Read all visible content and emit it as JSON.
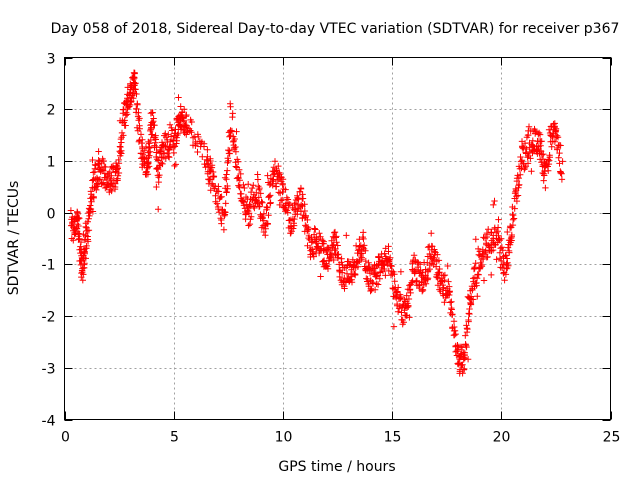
{
  "chart_data": {
    "type": "scatter",
    "title": "Day 058 of 2018, Sidereal Day-to-day VTEC variation (SDTVAR) for receiver p367",
    "xlabel": "GPS time / hours",
    "ylabel": "SDTVAR / TECUs",
    "xlim": [
      0,
      25
    ],
    "ylim": [
      -4,
      3
    ],
    "xticks": [
      0,
      5,
      10,
      15,
      20,
      25
    ],
    "yticks": [
      -4,
      -3,
      -2,
      -1,
      0,
      1,
      2,
      3
    ],
    "grid": true,
    "marker": "+",
    "color": "#ff0000",
    "trend": [
      [
        0.3,
        -0.4
      ],
      [
        0.6,
        -0.1
      ],
      [
        0.8,
        -1.1
      ],
      [
        1.0,
        -0.5
      ],
      [
        1.3,
        0.5
      ],
      [
        1.6,
        0.9
      ],
      [
        2.0,
        0.6
      ],
      [
        2.4,
        0.7
      ],
      [
        2.7,
        1.8
      ],
      [
        3.0,
        2.3
      ],
      [
        3.2,
        2.6
      ],
      [
        3.5,
        1.2
      ],
      [
        3.8,
        0.7
      ],
      [
        4.0,
        1.9
      ],
      [
        4.3,
        0.8
      ],
      [
        4.6,
        1.3
      ],
      [
        5.0,
        1.4
      ],
      [
        5.3,
        1.9
      ],
      [
        5.6,
        1.7
      ],
      [
        6.5,
        1.0
      ],
      [
        6.8,
        0.6
      ],
      [
        7.3,
        -0.1
      ],
      [
        7.6,
        1.9
      ],
      [
        8.0,
        0.7
      ],
      [
        8.4,
        -0.1
      ],
      [
        8.8,
        0.5
      ],
      [
        9.2,
        -0.3
      ],
      [
        9.6,
        0.8
      ],
      [
        10.0,
        0.4
      ],
      [
        10.4,
        -0.2
      ],
      [
        10.8,
        0.4
      ],
      [
        11.2,
        -0.6
      ],
      [
        11.6,
        -0.5
      ],
      [
        12.0,
        -0.9
      ],
      [
        12.4,
        -0.6
      ],
      [
        12.8,
        -1.3
      ],
      [
        13.2,
        -1.1
      ],
      [
        13.6,
        -0.6
      ],
      [
        14.0,
        -1.4
      ],
      [
        14.4,
        -1.1
      ],
      [
        14.8,
        -0.9
      ],
      [
        15.2,
        -1.6
      ],
      [
        15.6,
        -2.0
      ],
      [
        16.0,
        -1.0
      ],
      [
        16.4,
        -1.4
      ],
      [
        16.8,
        -0.7
      ],
      [
        17.2,
        -1.3
      ],
      [
        17.6,
        -1.6
      ],
      [
        18.0,
        -2.8
      ],
      [
        18.3,
        -2.9
      ],
      [
        18.6,
        -1.6
      ],
      [
        19.0,
        -0.9
      ],
      [
        19.4,
        -0.6
      ],
      [
        19.8,
        -0.4
      ],
      [
        20.2,
        -1.1
      ],
      [
        20.5,
        -0.2
      ],
      [
        20.9,
        1.0
      ],
      [
        21.3,
        1.3
      ],
      [
        21.7,
        1.4
      ],
      [
        22.0,
        0.7
      ],
      [
        22.4,
        1.7
      ],
      [
        22.8,
        0.8
      ]
    ]
  }
}
